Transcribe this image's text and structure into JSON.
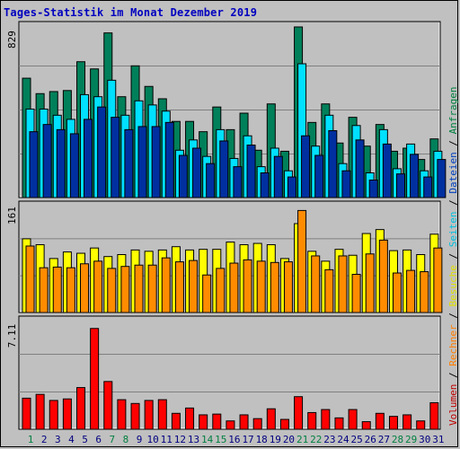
{
  "title": "Tages-Statistik im Monat Dezember 2019",
  "side_legend": [
    {
      "label": "Volumen",
      "color": "#c00000"
    },
    {
      "label": " / ",
      "color": "#000000"
    },
    {
      "label": "Rechner",
      "color": "#ff7f00"
    },
    {
      "label": " / ",
      "color": "#000000"
    },
    {
      "label": "Besuche",
      "color": "#e0e000"
    },
    {
      "label": " / ",
      "color": "#000000"
    },
    {
      "label": "Seiten",
      "color": "#00c0e0"
    },
    {
      "label": " / ",
      "color": "#000000"
    },
    {
      "label": "Dateien",
      "color": "#0040c0"
    },
    {
      "label": " / ",
      "color": "#000000"
    },
    {
      "label": "Anfragen",
      "color": "#008040"
    }
  ],
  "colors": {
    "anfragen": "#00805a",
    "dateien": "#0030a0",
    "seiten": "#00e0ff",
    "besuche": "#ffff00",
    "rechner": "#ff8c00",
    "volumen": "#ff0000",
    "weekend_label": "#008040",
    "weekday_label": "#000080"
  },
  "chart_data": [
    {
      "type": "bar",
      "panel": "top",
      "ymax_label": "829",
      "ylim": [
        0,
        829
      ],
      "categories": [
        "1",
        "2",
        "3",
        "4",
        "5",
        "6",
        "7",
        "8",
        "9",
        "10",
        "11",
        "12",
        "13",
        "14",
        "15",
        "16",
        "17",
        "18",
        "19",
        "20",
        "21",
        "22",
        "23",
        "24",
        "25",
        "26",
        "27",
        "28",
        "29",
        "30",
        "31"
      ],
      "series": [
        {
          "name": "Anfragen",
          "values": [
            580,
            505,
            515,
            520,
            660,
            625,
            800,
            490,
            640,
            540,
            480,
            370,
            370,
            320,
            440,
            330,
            410,
            230,
            455,
            225,
            835,
            365,
            455,
            265,
            390,
            250,
            355,
            225,
            240,
            185,
            285
          ]
        },
        {
          "name": "Seiten",
          "values": [
            430,
            430,
            400,
            380,
            500,
            490,
            570,
            400,
            470,
            450,
            420,
            230,
            280,
            200,
            330,
            190,
            300,
            150,
            240,
            130,
            650,
            250,
            400,
            165,
            350,
            120,
            330,
            140,
            260,
            130,
            225
          ]
        },
        {
          "name": "Dateien",
          "values": [
            320,
            355,
            330,
            310,
            380,
            440,
            390,
            330,
            345,
            345,
            365,
            205,
            240,
            165,
            275,
            150,
            255,
            120,
            200,
            100,
            300,
            205,
            325,
            130,
            280,
            85,
            260,
            115,
            210,
            100,
            185
          ]
        }
      ]
    },
    {
      "type": "bar",
      "panel": "middle",
      "ymax_label": "161",
      "ylim": [
        0,
        161
      ],
      "categories": [
        "1",
        "2",
        "3",
        "4",
        "5",
        "6",
        "7",
        "8",
        "9",
        "10",
        "11",
        "12",
        "13",
        "14",
        "15",
        "16",
        "17",
        "18",
        "19",
        "20",
        "21",
        "22",
        "23",
        "24",
        "25",
        "26",
        "27",
        "28",
        "29",
        "30",
        "31"
      ],
      "series": [
        {
          "name": "Besuche",
          "values": [
            112,
            103,
            82,
            92,
            90,
            98,
            85,
            88,
            95,
            93,
            95,
            100,
            95,
            96,
            96,
            107,
            103,
            105,
            103,
            82,
            135,
            93,
            78,
            96,
            87,
            120,
            126,
            94,
            95,
            88,
            119
          ]
        },
        {
          "name": "Rechner",
          "values": [
            101,
            68,
            69,
            68,
            74,
            78,
            67,
            70,
            72,
            72,
            83,
            77,
            79,
            57,
            67,
            75,
            80,
            78,
            76,
            77,
            155,
            86,
            65,
            86,
            58,
            89,
            110,
            60,
            64,
            62,
            98
          ]
        }
      ]
    },
    {
      "type": "bar",
      "panel": "bottom",
      "ymax_label": "7.11",
      "ylim": [
        0,
        7.11
      ],
      "categories": [
        "1",
        "2",
        "3",
        "4",
        "5",
        "6",
        "7",
        "8",
        "9",
        "10",
        "11",
        "12",
        "13",
        "14",
        "15",
        "16",
        "17",
        "18",
        "19",
        "20",
        "21",
        "22",
        "23",
        "24",
        "25",
        "26",
        "27",
        "28",
        "29",
        "30",
        "31"
      ],
      "series": [
        {
          "name": "Volumen",
          "values": [
            2.05,
            2.3,
            1.9,
            2.0,
            2.75,
            6.65,
            3.15,
            1.95,
            1.7,
            1.9,
            1.95,
            1.05,
            1.4,
            0.95,
            1.0,
            0.55,
            0.95,
            0.7,
            1.35,
            0.65,
            2.15,
            1.1,
            1.3,
            0.75,
            1.3,
            0.5,
            1.05,
            0.85,
            0.95,
            0.55,
            1.75
          ]
        }
      ]
    }
  ],
  "x_labels": [
    {
      "t": "1",
      "w": false
    },
    {
      "t": "2",
      "w": true
    },
    {
      "t": "3",
      "w": true
    },
    {
      "t": "4",
      "w": true
    },
    {
      "t": "5",
      "w": true
    },
    {
      "t": "6",
      "w": true
    },
    {
      "t": "7",
      "w": false
    },
    {
      "t": "8",
      "w": false
    },
    {
      "t": "9",
      "w": true
    },
    {
      "t": "10",
      "w": true
    },
    {
      "t": "11",
      "w": true
    },
    {
      "t": "12",
      "w": true
    },
    {
      "t": "13",
      "w": true
    },
    {
      "t": "14",
      "w": false
    },
    {
      "t": "15",
      "w": false
    },
    {
      "t": "16",
      "w": true
    },
    {
      "t": "17",
      "w": true
    },
    {
      "t": "18",
      "w": true
    },
    {
      "t": "19",
      "w": true
    },
    {
      "t": "20",
      "w": true
    },
    {
      "t": "21",
      "w": false
    },
    {
      "t": "22",
      "w": false
    },
    {
      "t": "23",
      "w": true
    },
    {
      "t": "24",
      "w": true
    },
    {
      "t": "25",
      "w": true
    },
    {
      "t": "26",
      "w": true
    },
    {
      "t": "27",
      "w": true
    },
    {
      "t": "28",
      "w": false
    },
    {
      "t": "29",
      "w": false
    },
    {
      "t": "30",
      "w": true
    },
    {
      "t": "31",
      "w": true
    }
  ]
}
